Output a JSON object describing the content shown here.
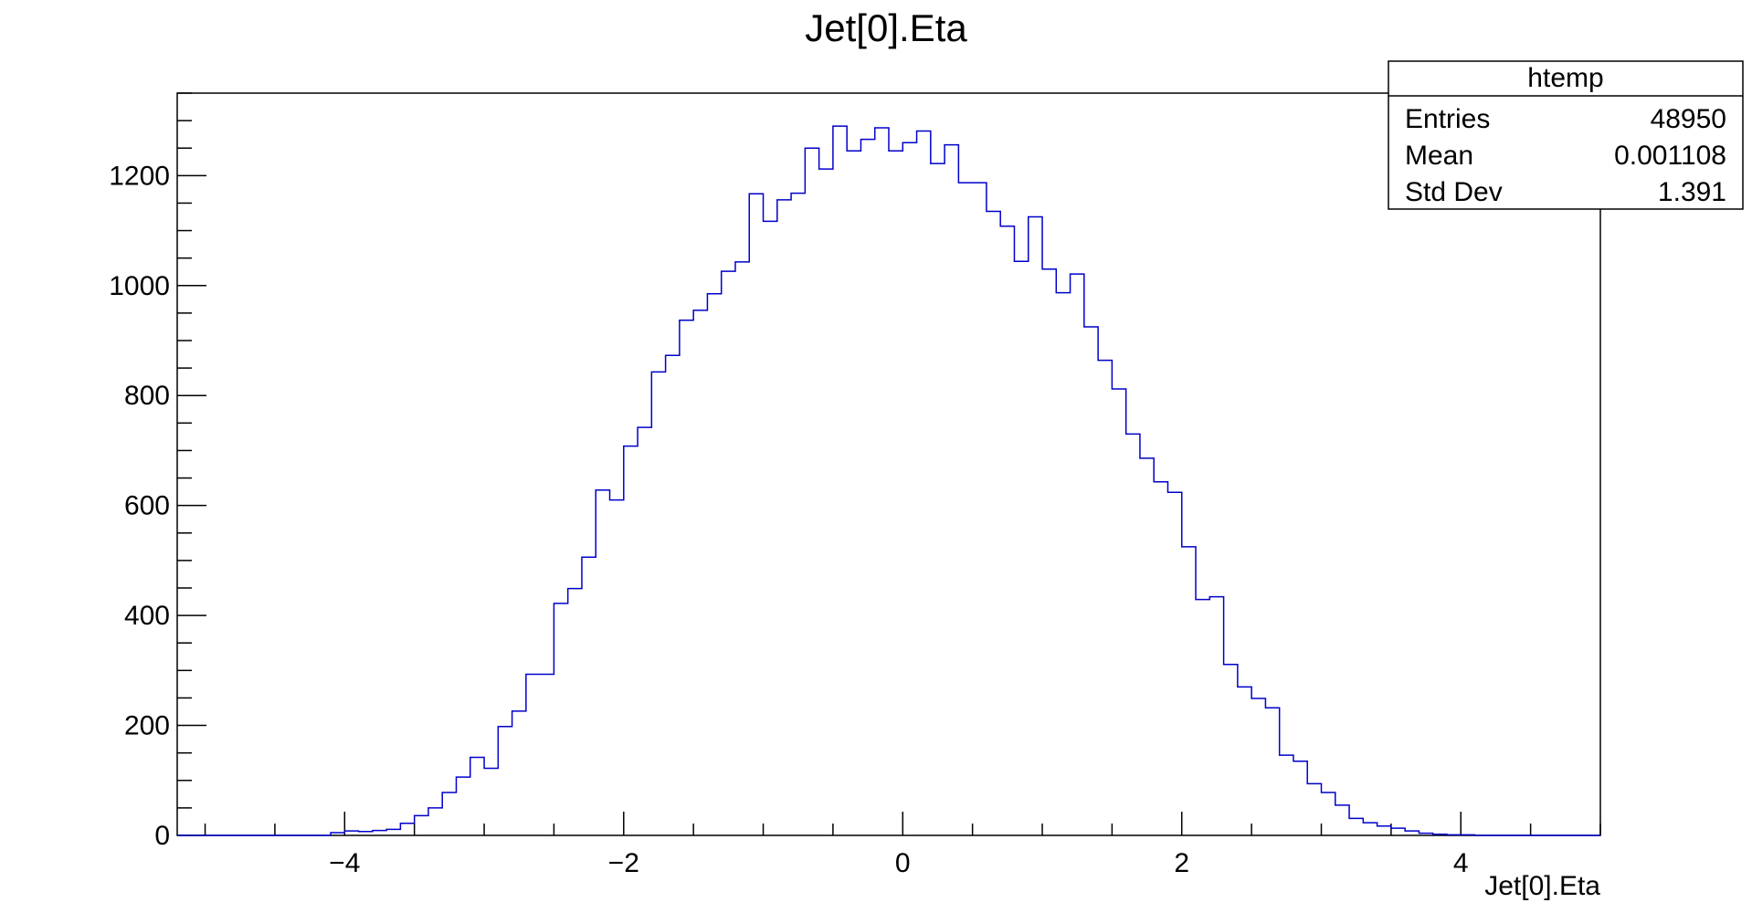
{
  "chart_data": {
    "type": "histogram",
    "title": "Jet[0].Eta",
    "xlabel": "Jet[0].Eta",
    "ylabel": "",
    "xlim": [
      -5.2,
      5.0
    ],
    "ylim": [
      0,
      1350
    ],
    "bin_width": 0.1,
    "x_ticks": [
      -4,
      -2,
      0,
      2,
      4
    ],
    "x_tick_labels": [
      "−4",
      "−2",
      "0",
      "2",
      "4"
    ],
    "y_ticks": [
      0,
      200,
      400,
      600,
      800,
      1000,
      1200
    ],
    "y_tick_labels": [
      "0",
      "200",
      "400",
      "600",
      "800",
      "1000",
      "1200"
    ],
    "grid": false,
    "line_color": "#0000cc",
    "bins": [
      [
        -4.2,
        0
      ],
      [
        -4.1,
        5
      ],
      [
        -4.0,
        8
      ],
      [
        -3.9,
        7
      ],
      [
        -3.8,
        9
      ],
      [
        -3.7,
        11
      ],
      [
        -3.6,
        22
      ],
      [
        -3.5,
        36
      ],
      [
        -3.4,
        50
      ],
      [
        -3.3,
        78
      ],
      [
        -3.2,
        106
      ],
      [
        -3.1,
        142
      ],
      [
        -3.0,
        122
      ],
      [
        -2.9,
        198
      ],
      [
        -2.8,
        226
      ],
      [
        -2.7,
        293
      ],
      [
        -2.6,
        293
      ],
      [
        -2.5,
        422
      ],
      [
        -2.4,
        449
      ],
      [
        -2.3,
        506
      ],
      [
        -2.2,
        628
      ],
      [
        -2.1,
        610
      ],
      [
        -2.0,
        708
      ],
      [
        -1.9,
        742
      ],
      [
        -1.8,
        843
      ],
      [
        -1.7,
        873
      ],
      [
        -1.6,
        937
      ],
      [
        -1.5,
        955
      ],
      [
        -1.4,
        985
      ],
      [
        -1.3,
        1026
      ],
      [
        -1.2,
        1043
      ],
      [
        -1.1,
        1167
      ],
      [
        -1.0,
        1117
      ],
      [
        -0.9,
        1156
      ],
      [
        -0.8,
        1168
      ],
      [
        -0.7,
        1250
      ],
      [
        -0.6,
        1212
      ],
      [
        -0.5,
        1290
      ],
      [
        -0.4,
        1245
      ],
      [
        -0.3,
        1266
      ],
      [
        -0.2,
        1287
      ],
      [
        -0.1,
        1245
      ],
      [
        0.0,
        1260
      ],
      [
        0.1,
        1281
      ],
      [
        0.2,
        1222
      ],
      [
        0.3,
        1256
      ],
      [
        0.4,
        1187
      ],
      [
        0.5,
        1187
      ],
      [
        0.6,
        1135
      ],
      [
        0.7,
        1108
      ],
      [
        0.8,
        1044
      ],
      [
        0.9,
        1125
      ],
      [
        1.0,
        1030
      ],
      [
        1.1,
        987
      ],
      [
        1.2,
        1021
      ],
      [
        1.3,
        925
      ],
      [
        1.4,
        864
      ],
      [
        1.5,
        812
      ],
      [
        1.6,
        730
      ],
      [
        1.7,
        686
      ],
      [
        1.8,
        643
      ],
      [
        1.9,
        624
      ],
      [
        2.0,
        525
      ],
      [
        2.1,
        429
      ],
      [
        2.2,
        434
      ],
      [
        2.3,
        311
      ],
      [
        2.4,
        270
      ],
      [
        2.5,
        249
      ],
      [
        2.6,
        232
      ],
      [
        2.7,
        146
      ],
      [
        2.8,
        135
      ],
      [
        2.9,
        94
      ],
      [
        3.0,
        78
      ],
      [
        3.1,
        55
      ],
      [
        3.2,
        31
      ],
      [
        3.3,
        23
      ],
      [
        3.4,
        17
      ],
      [
        3.5,
        13
      ],
      [
        3.6,
        8
      ],
      [
        3.7,
        4
      ],
      [
        3.8,
        2
      ],
      [
        3.9,
        1
      ],
      [
        4.0,
        1
      ],
      [
        4.1,
        0
      ]
    ]
  },
  "stats_box": {
    "title": "htemp",
    "rows": [
      {
        "label": "Entries",
        "value": "48950"
      },
      {
        "label": "Mean",
        "value": "0.001108"
      },
      {
        "label": "Std Dev",
        "value": "1.391"
      }
    ]
  }
}
